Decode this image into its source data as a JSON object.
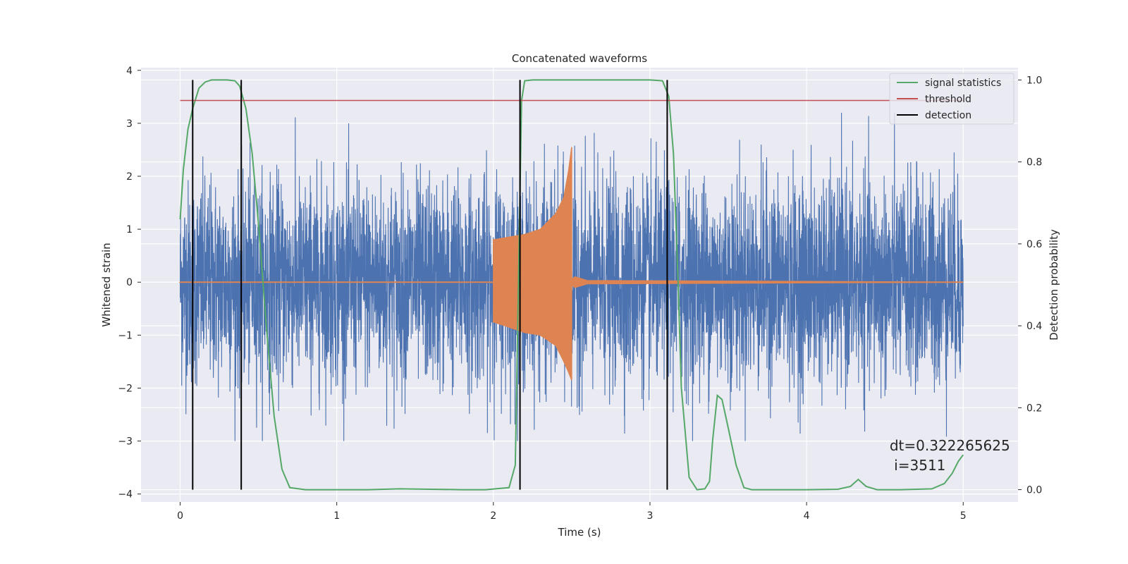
{
  "chart_data": {
    "type": "line",
    "title": "Concatenated waveforms",
    "xlabel": "Time (s)",
    "ylabel": "Whitened strain",
    "y2label": "Detection probability",
    "xlim": [
      -0.25,
      5.35
    ],
    "ylim": [
      -4.15,
      4.05
    ],
    "y2lim": [
      -0.03,
      1.03
    ],
    "xticks": [
      "0",
      "1",
      "2",
      "3",
      "4",
      "5"
    ],
    "yticks": [
      "−4",
      "−3",
      "−2",
      "−1",
      "0",
      "1",
      "2",
      "3",
      "4"
    ],
    "y2ticks": [
      "0.0",
      "0.2",
      "0.4",
      "0.6",
      "0.8",
      "1.0"
    ],
    "grid": true,
    "legend_position": "top-right",
    "legend": [
      {
        "label": "signal statistics",
        "color": "#55a868"
      },
      {
        "label": "threshold",
        "color": "#c44e52"
      },
      {
        "label": "detection",
        "color": "#000000"
      }
    ],
    "colors": {
      "noise": "#4c72b0",
      "injection": "#dd8452",
      "statistic": "#55a868",
      "threshold": "#c44e52",
      "detection": "#000000",
      "background": "#eaeaf2",
      "grid": "#ffffff"
    },
    "series": [
      {
        "role": "noise",
        "axis": "left",
        "description_values": "Gaussian-like whitened noise from 0 to 5 s, amplitude mostly within ±1.5, peaks near ±3",
        "x_range": [
          0,
          5
        ],
        "approx_envelope": [
          -3.0,
          3.2
        ]
      },
      {
        "role": "injection",
        "axis": "left",
        "x": [
          0,
          2.0,
          2.0,
          2.1,
          2.2,
          2.3,
          2.4,
          2.45,
          2.48,
          2.5,
          2.5,
          2.52,
          2.6,
          5.0
        ],
        "upper": [
          0,
          0,
          0.8,
          0.85,
          0.9,
          1.0,
          1.3,
          1.6,
          2.1,
          2.55,
          0.05,
          0.1,
          0.03,
          0
        ],
        "lower": [
          0,
          0,
          -0.75,
          -0.85,
          -0.95,
          -1.0,
          -1.2,
          -1.5,
          -1.7,
          -1.85,
          -0.05,
          -0.1,
          -0.03,
          0
        ]
      },
      {
        "name": "signal statistics",
        "axis": "right",
        "x": [
          0,
          0.02,
          0.05,
          0.08,
          0.12,
          0.16,
          0.2,
          0.25,
          0.3,
          0.35,
          0.38,
          0.42,
          0.46,
          0.5,
          0.55,
          0.6,
          0.65,
          0.7,
          0.8,
          1.0,
          1.2,
          1.4,
          1.6,
          1.8,
          1.95,
          2.1,
          2.14,
          2.16,
          2.18,
          2.2,
          2.25,
          2.5,
          3.0,
          3.08,
          3.12,
          3.15,
          3.18,
          3.2,
          3.25,
          3.3,
          3.35,
          3.38,
          3.4,
          3.43,
          3.46,
          3.5,
          3.55,
          3.6,
          3.65,
          3.7,
          3.8,
          4.0,
          4.2,
          4.28,
          4.33,
          4.38,
          4.45,
          4.6,
          4.8,
          4.88,
          4.93,
          4.97,
          5.0
        ],
        "values": [
          0.66,
          0.78,
          0.88,
          0.93,
          0.98,
          0.995,
          1.0,
          1.0,
          1.0,
          0.998,
          0.985,
          0.93,
          0.82,
          0.65,
          0.4,
          0.18,
          0.05,
          0.005,
          0.0,
          0.0,
          0.0,
          0.002,
          0.001,
          0.0,
          0.0,
          0.005,
          0.06,
          0.5,
          0.95,
          0.998,
          1.0,
          1.0,
          1.0,
          0.998,
          0.96,
          0.82,
          0.5,
          0.25,
          0.03,
          0.0,
          0.002,
          0.02,
          0.12,
          0.23,
          0.22,
          0.15,
          0.06,
          0.005,
          0.0,
          0.0,
          0.0,
          0.0,
          0.001,
          0.008,
          0.025,
          0.008,
          0.0,
          0.0,
          0.002,
          0.015,
          0.04,
          0.07,
          0.085
        ]
      },
      {
        "name": "threshold",
        "axis": "right",
        "x": [
          0,
          5.0
        ],
        "values": [
          0.95,
          0.95
        ]
      }
    ],
    "detections": [
      {
        "x": 0.08,
        "y2": [
          0.0,
          1.0
        ]
      },
      {
        "x": 0.39,
        "y2": [
          0.0,
          1.0
        ]
      },
      {
        "x": 2.17,
        "y2": [
          0.0,
          1.0
        ]
      },
      {
        "x": 3.11,
        "y2": [
          0.0,
          1.0
        ]
      }
    ],
    "annotations": [
      {
        "text": "dt=0.322265625",
        "x": 4.53,
        "y": -3.18
      },
      {
        "text": " i=3511",
        "x": 4.53,
        "y": -3.55
      }
    ]
  }
}
